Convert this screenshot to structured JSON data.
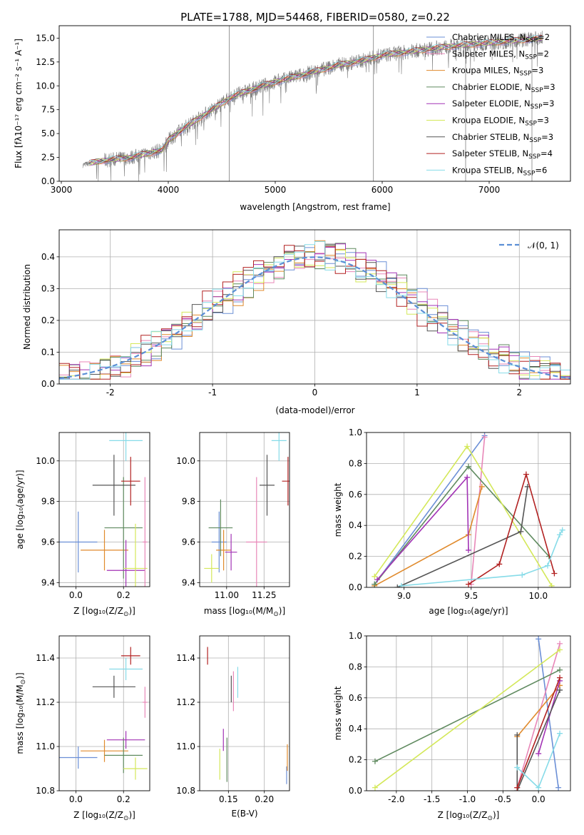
{
  "figure": {
    "title": "PLATE=1788, MJD=54468, FIBERID=0580, z=0.22"
  },
  "colors": {
    "chabrier_miles": "#6b8fd6",
    "salpeter_miles": "#e887b8",
    "kroupa_miles": "#e08a2c",
    "chabrier_elodie": "#5f8a5f",
    "salpeter_elodie": "#a233b5",
    "kroupa_elodie": "#d4e85a",
    "chabrier_stelib": "#555555",
    "salpeter_stelib": "#b22222",
    "kroupa_stelib": "#86dbe8",
    "gauss": "#5b8fd6"
  },
  "chart_data": [
    {
      "id": "spectrum",
      "type": "line",
      "xlabel": "wavelength [Angstrom, rest frame]",
      "ylabel": "Flux [fλ10⁻¹⁷ erg cm⁻² s⁻¹ A⁻¹]",
      "xlim": [
        2980,
        7760
      ],
      "ylim": [
        0,
        16.3
      ],
      "xticks": [
        3000,
        4000,
        5000,
        6000,
        7000
      ],
      "yticks": [
        0.0,
        2.5,
        5.0,
        7.5,
        10.0,
        12.5,
        15.0
      ],
      "grid": false,
      "legend_position": "top-right",
      "series": [
        {
          "name": "Chabrier MILES, N_SSP=2",
          "name_main": "Chabrier MILES, N",
          "name_sub": "SSP",
          "name_tail": "=2",
          "color_key": "chabrier_miles"
        },
        {
          "name": "Salpeter MILES, N_SSP=2",
          "name_main": "Salpeter MILES, N",
          "name_sub": "SSP",
          "name_tail": "=2",
          "color_key": "salpeter_miles"
        },
        {
          "name": "Kroupa MILES, N_SSP=3",
          "name_main": "Kroupa MILES, N",
          "name_sub": "SSP",
          "name_tail": "=3",
          "color_key": "kroupa_miles"
        },
        {
          "name": "Chabrier ELODIE, N_SSP=3",
          "name_main": "Chabrier ELODIE, N",
          "name_sub": "SSP",
          "name_tail": "=3",
          "color_key": "chabrier_elodie"
        },
        {
          "name": "Salpeter ELODIE, N_SSP=3",
          "name_main": "Salpeter ELODIE, N",
          "name_sub": "SSP",
          "name_tail": "=3",
          "color_key": "salpeter_elodie"
        },
        {
          "name": "Kroupa ELODIE, N_SSP=3",
          "name_main": "Kroupa ELODIE, N",
          "name_sub": "SSP",
          "name_tail": "=3",
          "color_key": "kroupa_elodie"
        },
        {
          "name": "Chabrier STELIB, N_SSP=3",
          "name_main": "Chabrier STELIB, N",
          "name_sub": "SSP",
          "name_tail": "=3",
          "color_key": "chabrier_stelib"
        },
        {
          "name": "Salpeter STELIB, N_SSP=4",
          "name_main": "Salpeter STELIB, N",
          "name_sub": "SSP",
          "name_tail": "=4",
          "color_key": "salpeter_stelib"
        },
        {
          "name": "Kroupa STELIB, N_SSP=6",
          "name_main": "Kroupa STELIB, N",
          "name_sub": "SSP",
          "name_tail": "=6",
          "color_key": "kroupa_stelib"
        }
      ],
      "continuum": {
        "x": [
          3200,
          3350,
          3500,
          3650,
          3800,
          3950,
          4000,
          4150,
          4300,
          4450,
          4600,
          4800,
          5000,
          5200,
          5400,
          5600,
          5800,
          6000,
          6200,
          6400,
          6600,
          6800,
          7000,
          7200,
          7400,
          7500
        ],
        "y": [
          1.7,
          2.1,
          2.3,
          2.5,
          2.9,
          3.3,
          4.3,
          5.6,
          6.7,
          7.8,
          8.9,
          9.7,
          10.4,
          11.0,
          11.6,
          12.2,
          12.6,
          13.2,
          13.5,
          13.8,
          14.1,
          14.3,
          14.5,
          14.7,
          14.9,
          15.0
        ]
      },
      "spikes": [
        {
          "x": 4570,
          "y_top": 16.3
        },
        {
          "x": 5918,
          "y_top": 16.3
        },
        {
          "x": 6780,
          "y_top": 14.5
        },
        {
          "x": 7400,
          "y_top": 15.0
        }
      ]
    },
    {
      "id": "residuals",
      "type": "histogram",
      "xlabel": "(data-model)/error",
      "ylabel": "Normed distribution",
      "xlim": [
        -2.5,
        2.5
      ],
      "ylim": [
        0,
        0.485
      ],
      "xticks": [
        -2,
        -1,
        0,
        1,
        2
      ],
      "yticks": [
        0.0,
        0.1,
        0.2,
        0.3,
        0.4
      ],
      "grid": true,
      "legend_position": "top-right",
      "legend_label": "𝒩(0, 1)",
      "gaussian": {
        "mean": 0,
        "sigma": 1
      }
    },
    {
      "id": "age_vs_Z",
      "type": "errorbar",
      "xlabel_main": "Z [log₁₀(Z/Z",
      "xlabel_sub": "⊙",
      "xlabel_tail": ")]",
      "ylabel": "age  [log₁₀(age/yr)]",
      "xlim": [
        -0.07,
        0.31
      ],
      "ylim": [
        9.38,
        10.14
      ],
      "xticks": [
        0.0,
        0.2
      ],
      "yticks": [
        9.4,
        9.6,
        9.8,
        10.0
      ],
      "grid": true,
      "points": [
        {
          "color_key": "chabrier_miles",
          "x": 0.01,
          "xerr": 0.08,
          "y": 9.6,
          "yerr": 0.15
        },
        {
          "color_key": "kroupa_miles",
          "x": 0.12,
          "xerr": 0.1,
          "y": 9.56,
          "yerr": 0.1
        },
        {
          "color_key": "chabrier_elodie",
          "x": 0.2,
          "xerr": 0.08,
          "y": 9.67,
          "yerr": 0.25
        },
        {
          "color_key": "salpeter_elodie",
          "x": 0.21,
          "xerr": 0.08,
          "y": 9.46,
          "yerr": 0.15
        },
        {
          "color_key": "kroupa_elodie",
          "x": 0.25,
          "xerr": 0.05,
          "y": 9.47,
          "yerr": 0.22
        },
        {
          "color_key": "chabrier_stelib",
          "x": 0.16,
          "xerr": 0.09,
          "y": 9.88,
          "yerr": 0.15
        },
        {
          "color_key": "salpeter_stelib",
          "x": 0.23,
          "xerr": 0.04,
          "y": 9.9,
          "yerr": 0.12
        },
        {
          "color_key": "kroupa_stelib",
          "x": 0.21,
          "xerr": 0.07,
          "y": 10.1,
          "yerr": 0.1
        },
        {
          "color_key": "salpeter_miles",
          "x": 0.29,
          "xerr": 0.01,
          "y": 9.6,
          "yerr": 0.32
        }
      ]
    },
    {
      "id": "age_vs_mass",
      "type": "errorbar",
      "xlabel_main": "mass [log₁₀(M/M",
      "xlabel_sub": "⊙",
      "xlabel_tail": ")]",
      "ylabel": "",
      "xlim": [
        10.82,
        11.42
      ],
      "ylim": [
        9.38,
        10.14
      ],
      "xticks": [
        11.0,
        11.25
      ],
      "yticks": [
        9.4,
        9.6,
        9.8,
        10.0
      ],
      "grid": true,
      "points": [
        {
          "color_key": "chabrier_miles",
          "x": 10.95,
          "xerr": 0.05,
          "y": 9.6,
          "yerr": 0.15
        },
        {
          "color_key": "kroupa_miles",
          "x": 10.98,
          "xerr": 0.05,
          "y": 9.56,
          "yerr": 0.1
        },
        {
          "color_key": "chabrier_elodie",
          "x": 10.96,
          "xerr": 0.08,
          "y": 9.67,
          "yerr": 0.14
        },
        {
          "color_key": "salpeter_elodie",
          "x": 11.03,
          "xerr": 0.04,
          "y": 9.55,
          "yerr": 0.09
        },
        {
          "color_key": "kroupa_elodie",
          "x": 10.9,
          "xerr": 0.05,
          "y": 9.47,
          "yerr": 0.07
        },
        {
          "color_key": "chabrier_stelib",
          "x": 11.27,
          "xerr": 0.05,
          "y": 9.88,
          "yerr": 0.15
        },
        {
          "color_key": "salpeter_stelib",
          "x": 11.41,
          "xerr": 0.04,
          "y": 9.9,
          "yerr": 0.12
        },
        {
          "color_key": "kroupa_stelib",
          "x": 11.35,
          "xerr": 0.05,
          "y": 10.1,
          "yerr": 0.1
        },
        {
          "color_key": "salpeter_miles",
          "x": 11.2,
          "xerr": 0.07,
          "y": 9.6,
          "yerr": 0.32
        }
      ]
    },
    {
      "id": "weight_vs_age",
      "type": "line",
      "xlabel": "age  [log₁₀(age/yr)]",
      "ylabel": "mass weight",
      "xlim": [
        8.72,
        10.24
      ],
      "ylim": [
        0.0,
        1.0
      ],
      "xticks": [
        9.0,
        9.5,
        10.0
      ],
      "yticks": [
        0.0,
        0.2,
        0.4,
        0.6,
        0.8,
        1.0
      ],
      "grid": true,
      "series": [
        {
          "color_key": "chabrier_miles",
          "points": [
            [
              8.78,
              0.02
            ],
            [
              9.6,
              0.98
            ]
          ]
        },
        {
          "color_key": "salpeter_miles",
          "points": [
            [
              9.5,
              0.02
            ],
            [
              9.6,
              0.97
            ]
          ]
        },
        {
          "color_key": "kroupa_miles",
          "points": [
            [
              8.78,
              0.01
            ],
            [
              9.48,
              0.34
            ],
            [
              9.58,
              0.65
            ]
          ]
        },
        {
          "color_key": "chabrier_elodie",
          "points": [
            [
              8.78,
              0.02
            ],
            [
              9.48,
              0.78
            ],
            [
              10.08,
              0.2
            ]
          ]
        },
        {
          "color_key": "salpeter_elodie",
          "points": [
            [
              8.8,
              0.05
            ],
            [
              9.47,
              0.71
            ],
            [
              9.48,
              0.24
            ]
          ]
        },
        {
          "color_key": "kroupa_elodie",
          "points": [
            [
              8.78,
              0.07
            ],
            [
              9.47,
              0.91
            ],
            [
              10.1,
              0.01
            ]
          ]
        },
        {
          "color_key": "chabrier_stelib",
          "points": [
            [
              8.95,
              0.0
            ],
            [
              9.87,
              0.36
            ],
            [
              9.92,
              0.65
            ]
          ]
        },
        {
          "color_key": "salpeter_stelib",
          "points": [
            [
              9.48,
              0.02
            ],
            [
              9.71,
              0.15
            ],
            [
              9.91,
              0.73
            ],
            [
              10.12,
              0.09
            ]
          ]
        },
        {
          "color_key": "kroupa_stelib",
          "points": [
            [
              8.98,
              0.01
            ],
            [
              9.88,
              0.08
            ],
            [
              10.07,
              0.14
            ],
            [
              10.16,
              0.34
            ],
            [
              10.18,
              0.37
            ]
          ]
        }
      ]
    },
    {
      "id": "mass_vs_Z",
      "type": "errorbar",
      "xlabel_main": "Z [log₁₀(Z/Z",
      "xlabel_sub": "⊙",
      "xlabel_tail": ")]",
      "ylabel_main": "mass [log₁₀(M/M",
      "ylabel_sub": "⊙",
      "ylabel_tail": ")]",
      "xlim": [
        -0.07,
        0.31
      ],
      "ylim": [
        10.8,
        11.5
      ],
      "xticks": [
        0.0,
        0.2
      ],
      "yticks": [
        10.8,
        11.0,
        11.2,
        11.4
      ],
      "grid": true,
      "points": [
        {
          "color_key": "chabrier_miles",
          "x": 0.01,
          "xerr": 0.08,
          "y": 10.95,
          "yerr": 0.05
        },
        {
          "color_key": "kroupa_miles",
          "x": 0.12,
          "xerr": 0.1,
          "y": 10.98,
          "yerr": 0.05
        },
        {
          "color_key": "chabrier_elodie",
          "x": 0.2,
          "xerr": 0.08,
          "y": 10.96,
          "yerr": 0.08
        },
        {
          "color_key": "salpeter_elodie",
          "x": 0.21,
          "xerr": 0.08,
          "y": 11.03,
          "yerr": 0.04
        },
        {
          "color_key": "kroupa_elodie",
          "x": 0.25,
          "xerr": 0.05,
          "y": 10.9,
          "yerr": 0.05
        },
        {
          "color_key": "chabrier_stelib",
          "x": 0.16,
          "xerr": 0.09,
          "y": 11.27,
          "yerr": 0.05
        },
        {
          "color_key": "salpeter_stelib",
          "x": 0.23,
          "xerr": 0.04,
          "y": 11.41,
          "yerr": 0.04
        },
        {
          "color_key": "kroupa_stelib",
          "x": 0.21,
          "xerr": 0.07,
          "y": 11.35,
          "yerr": 0.05
        },
        {
          "color_key": "salpeter_miles",
          "x": 0.29,
          "xerr": 0.01,
          "y": 11.2,
          "yerr": 0.07
        }
      ]
    },
    {
      "id": "mass_vs_ebv",
      "type": "errorbar",
      "xlabel": "E(B-V)",
      "ylabel": "",
      "xlim": [
        0.11,
        0.235
      ],
      "ylim": [
        10.8,
        11.5
      ],
      "xticks": [
        0.15,
        0.2
      ],
      "yticks": [
        10.8,
        11.0,
        11.2,
        11.4
      ],
      "grid": true,
      "points": [
        {
          "color_key": "chabrier_miles",
          "x": 0.231,
          "xerr": 0,
          "y": 10.87,
          "yerr": 0.04
        },
        {
          "color_key": "salpeter_miles",
          "x": 0.157,
          "xerr": 0,
          "y": 11.25,
          "yerr": 0.09
        },
        {
          "color_key": "kroupa_miles",
          "x": 0.232,
          "xerr": 0,
          "y": 10.95,
          "yerr": 0.06
        },
        {
          "color_key": "chabrier_elodie",
          "x": 0.148,
          "xerr": 0,
          "y": 10.94,
          "yerr": 0.1
        },
        {
          "color_key": "salpeter_elodie",
          "x": 0.143,
          "xerr": 0,
          "y": 11.03,
          "yerr": 0.05
        },
        {
          "color_key": "kroupa_elodie",
          "x": 0.138,
          "xerr": 0,
          "y": 10.92,
          "yerr": 0.07
        },
        {
          "color_key": "chabrier_stelib",
          "x": 0.154,
          "xerr": 0,
          "y": 11.26,
          "yerr": 0.06
        },
        {
          "color_key": "salpeter_stelib",
          "x": 0.121,
          "xerr": 0,
          "y": 11.41,
          "yerr": 0.04
        },
        {
          "color_key": "kroupa_stelib",
          "x": 0.163,
          "xerr": 0,
          "y": 11.29,
          "yerr": 0.07
        }
      ]
    },
    {
      "id": "weight_vs_Z",
      "type": "line",
      "xlabel_main": "Z [log₁₀(Z/Z",
      "xlabel_sub": "⊙",
      "xlabel_tail": ")]",
      "ylabel": "mass weight",
      "xlim": [
        -2.42,
        0.45
      ],
      "ylim": [
        0.0,
        1.0
      ],
      "xticks": [
        -2.0,
        -1.5,
        -1.0,
        -0.5,
        0.0
      ],
      "yticks": [
        0.0,
        0.2,
        0.4,
        0.6,
        0.8,
        1.0
      ],
      "grid": true,
      "series": [
        {
          "color_key": "chabrier_miles",
          "points": [
            [
              0.0,
              0.98
            ],
            [
              0.28,
              0.02
            ]
          ]
        },
        {
          "color_key": "salpeter_miles",
          "points": [
            [
              -0.3,
              0.02
            ],
            [
              0.3,
              0.95
            ]
          ]
        },
        {
          "color_key": "kroupa_miles",
          "points": [
            [
              -0.3,
              0.35
            ],
            [
              0.3,
              0.68
            ]
          ]
        },
        {
          "color_key": "chabrier_elodie",
          "points": [
            [
              -2.3,
              0.19
            ],
            [
              0.3,
              0.78
            ]
          ]
        },
        {
          "color_key": "salpeter_elodie",
          "points": [
            [
              0.0,
              0.24
            ],
            [
              0.3,
              0.71
            ]
          ]
        },
        {
          "color_key": "kroupa_elodie",
          "points": [
            [
              -2.3,
              0.02
            ],
            [
              0.3,
              0.91
            ]
          ]
        },
        {
          "color_key": "chabrier_stelib",
          "points": [
            [
              -0.3,
              0.36
            ],
            [
              -0.3,
              0.0
            ],
            [
              0.3,
              0.65
            ]
          ]
        },
        {
          "color_key": "salpeter_stelib",
          "points": [
            [
              -0.3,
              0.02
            ],
            [
              0.3,
              0.73
            ]
          ]
        },
        {
          "color_key": "kroupa_stelib",
          "points": [
            [
              -0.3,
              0.15
            ],
            [
              0.0,
              0.02
            ],
            [
              0.3,
              0.37
            ]
          ]
        }
      ]
    }
  ]
}
